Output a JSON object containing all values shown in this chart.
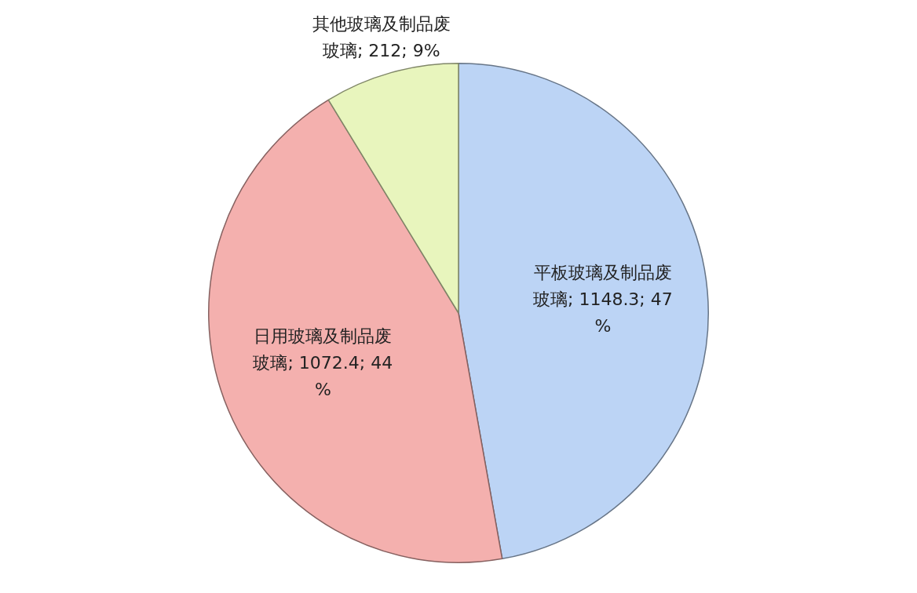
{
  "chart_data": {
    "type": "pie",
    "categories": [
      "平板玻璃及制品废玻璃",
      "日用玻璃及制品废玻璃",
      "其他玻璃及制品废玻璃"
    ],
    "values": [
      1148.3,
      1072.4,
      212
    ],
    "value_labels": [
      "; 1148.3; 47%",
      "; 1072.4; 44%",
      "; 212; 9%"
    ],
    "colors": [
      "#bcd4f5",
      "#f4b0ae",
      "#e8f5bd"
    ]
  }
}
